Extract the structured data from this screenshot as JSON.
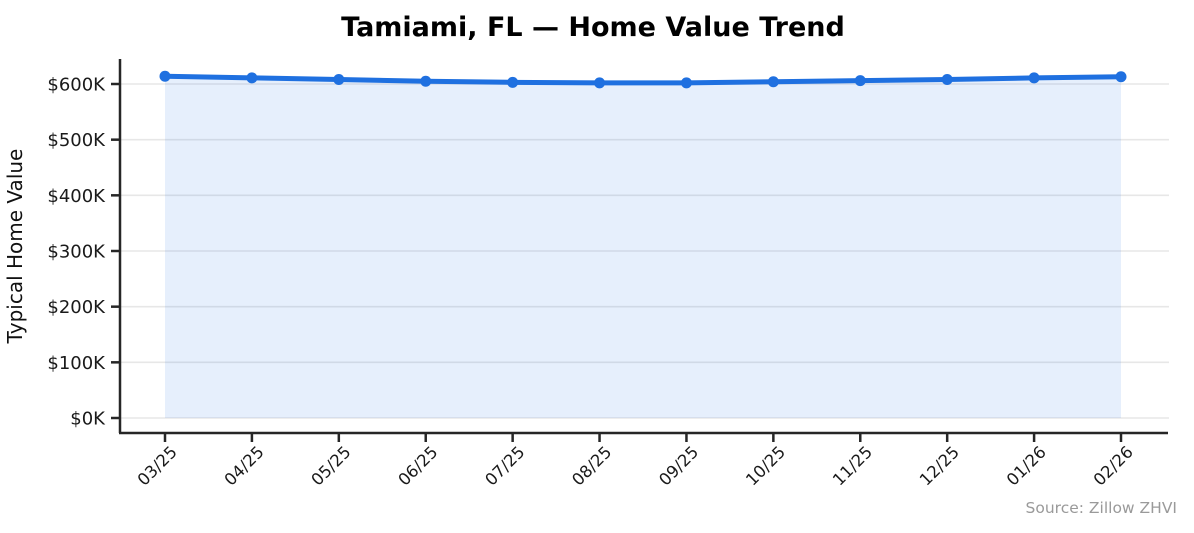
{
  "chart_data": {
    "type": "area",
    "title": "Tamiami, FL — Home Value Trend",
    "ylabel": "Typical Home Value",
    "xlabel": "",
    "categories": [
      "03/25",
      "04/25",
      "05/25",
      "06/25",
      "07/25",
      "08/25",
      "09/25",
      "10/25",
      "11/25",
      "12/25",
      "01/26",
      "02/26"
    ],
    "series": [
      {
        "name": "Typical Home Value",
        "unit": "USD thousands",
        "values": [
          614,
          611,
          608,
          605,
          603,
          602,
          602,
          604,
          606,
          608,
          611,
          613
        ]
      }
    ],
    "yticks": {
      "values": [
        0,
        100,
        200,
        300,
        400,
        500,
        600
      ],
      "labels": [
        "$0K",
        "$100K",
        "$200K",
        "$300K",
        "$400K",
        "$500K",
        "$600K"
      ]
    },
    "ylim": [
      0,
      645
    ],
    "grid": "horizontal",
    "legend": "none",
    "colors": {
      "line": "#1f70e0",
      "marker": "#1f70e0",
      "fill": "rgba(31,112,224,0.11)",
      "gridline": "#e7e7e7",
      "spine": "#262626"
    }
  },
  "source_note": "Source: Zillow ZHVI"
}
